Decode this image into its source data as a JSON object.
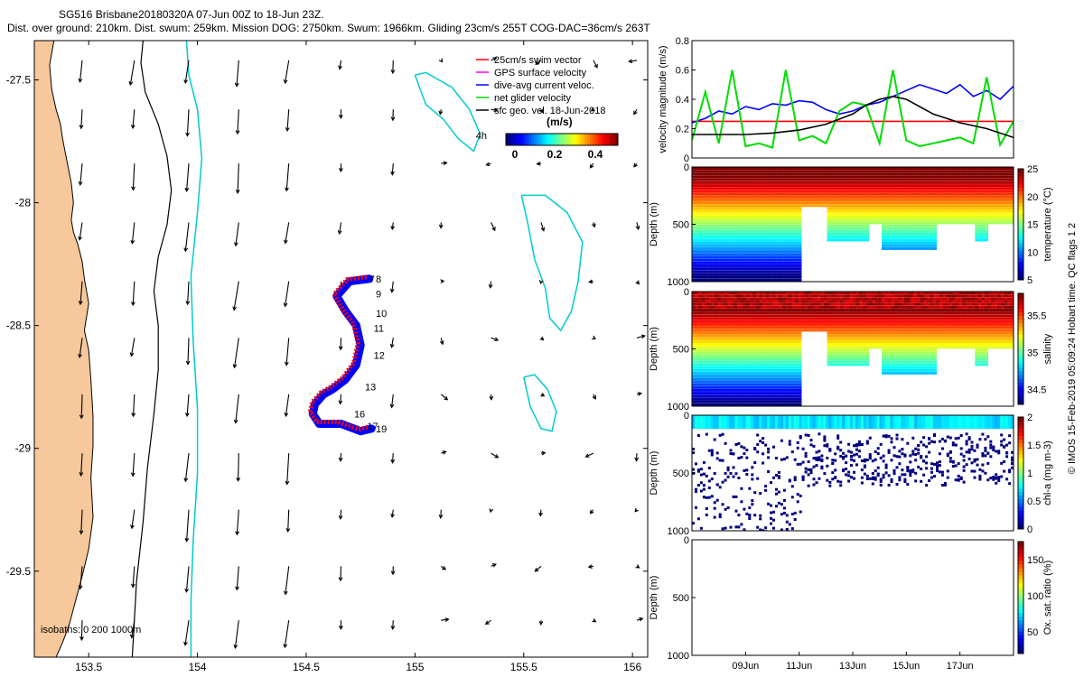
{
  "header": {
    "line1": "SG516 Brisbane20180320A 07-Jun 00Z to 18-Jun 23Z.",
    "line2": "Dist. over ground: 210km. Dist. swum: 259km. Mission DOG: 2750km. Swum: 1966km. Gliding 23cm/s 255T COG-DAC=36cm/s 263T"
  },
  "map": {
    "legend": [
      {
        "label": "25cm/s swim vector",
        "color": "#ff0000"
      },
      {
        "label": "GPS surface velocity",
        "color": "#ff00ff"
      },
      {
        "label": "dive-avg current veloc.",
        "color": "#0000ff"
      },
      {
        "label": "net glider velocity",
        "color": "#00dd00"
      },
      {
        "label": "sfc geo. vel. 18-Jun-2018",
        "color": "#000000"
      }
    ],
    "colorbar_label": "(m/s)",
    "colorbar_ticks": [
      "0",
      "0.2",
      "0.4"
    ],
    "eddy_label": "4h",
    "isobaths_label": "isobaths: 0   200  1000m",
    "dive_labels": [
      "8",
      "7",
      "9",
      "10",
      "11",
      "12",
      "13",
      "16",
      "17",
      "19"
    ],
    "colors": {
      "land": "#f7c89b",
      "isobath_200": "#00cccc",
      "track_red": "#ff0000",
      "track_blue": "#0000ff"
    }
  },
  "side_text": "© IMOS 15-Feb-2019 05:09:24 Hobart time. QC flags 1  2",
  "chart_data": [
    {
      "type": "map",
      "name": "glider track map",
      "xlim": [
        153.25,
        156.07
      ],
      "ylim": [
        -29.85,
        -27.34
      ],
      "x_ticks": [
        153.5,
        154,
        154.5,
        155,
        155.5,
        156
      ],
      "x_tick_labels": [
        "153.5",
        "154",
        "154.5",
        "155",
        "155.5",
        "156"
      ],
      "y_ticks": [
        -27.5,
        -28,
        -28.5,
        -29,
        -29.5
      ],
      "y_tick_labels": [
        "-27.5",
        "-28",
        "-28.5",
        "-29",
        "-29.5"
      ],
      "track": {
        "lon": [
          154.79,
          154.7,
          154.64,
          154.68,
          154.73,
          154.75,
          154.73,
          154.68,
          154.62,
          154.58,
          154.54,
          154.53,
          154.56,
          154.66,
          154.75,
          154.8
        ],
        "lat": [
          -28.31,
          -28.32,
          -28.38,
          -28.44,
          -28.5,
          -28.58,
          -28.66,
          -28.72,
          -28.76,
          -28.78,
          -28.82,
          -28.86,
          -28.9,
          -28.9,
          -28.93,
          -28.92
        ]
      },
      "dive_label_positions": {
        "lon": [
          154.82,
          154.79,
          154.82,
          154.82,
          154.81,
          154.81,
          154.77,
          154.72,
          154.78,
          154.82
        ],
        "lat": [
          -28.31,
          -28.31,
          -28.37,
          -28.45,
          -28.51,
          -28.62,
          -28.75,
          -28.86,
          -28.91,
          -28.92
        ]
      },
      "coastline": {
        "lon": [
          153.25,
          153.34,
          153.32,
          153.33,
          153.35,
          153.37,
          153.38,
          153.4,
          153.42,
          153.43,
          153.42,
          153.43,
          153.45,
          153.47,
          153.48,
          153.5,
          153.48,
          153.5,
          153.51,
          153.52,
          153.52,
          153.51,
          153.52,
          153.5,
          153.47,
          153.44,
          153.41,
          153.38,
          153.35,
          153.25
        ],
        "lat": [
          -27.34,
          -27.34,
          -27.44,
          -27.54,
          -27.62,
          -27.68,
          -27.74,
          -27.83,
          -27.92,
          -28.0,
          -28.07,
          -28.12,
          -28.17,
          -28.24,
          -28.31,
          -28.41,
          -28.52,
          -28.6,
          -28.72,
          -28.87,
          -28.99,
          -29.12,
          -29.28,
          -29.41,
          -29.52,
          -29.62,
          -29.72,
          -29.79,
          -29.85,
          -29.85
        ]
      },
      "isobath_1000m": {
        "lon": [
          153.75,
          153.74,
          153.76,
          153.82,
          153.86,
          153.88,
          153.86,
          153.82,
          153.8,
          153.82,
          153.82,
          153.8,
          153.77,
          153.75,
          153.72,
          153.7
        ],
        "lat": [
          -27.34,
          -27.43,
          -27.55,
          -27.68,
          -27.81,
          -27.95,
          -28.09,
          -28.22,
          -28.36,
          -28.5,
          -28.68,
          -28.86,
          -29.08,
          -29.3,
          -29.54,
          -29.85
        ]
      },
      "isobath_200m": {
        "lon": [
          153.95,
          153.96,
          154.0,
          154.02,
          154.0,
          153.97,
          153.98,
          154.0,
          154.0,
          153.98,
          153.97,
          153.97
        ],
        "lat": [
          -27.34,
          -27.48,
          -27.62,
          -27.82,
          -28.04,
          -28.3,
          -28.56,
          -28.84,
          -29.1,
          -29.38,
          -29.62,
          -29.85
        ]
      },
      "eddies": [
        {
          "lon": [
            155.0,
            155.05,
            155.17,
            155.25,
            155.3,
            155.27,
            155.2,
            155.13,
            155.05,
            155.0
          ],
          "lat": [
            -27.48,
            -27.47,
            -27.53,
            -27.62,
            -27.72,
            -27.79,
            -27.74,
            -27.66,
            -27.6,
            -27.48
          ]
        },
        {
          "lon": [
            155.49,
            155.6,
            155.7,
            155.77,
            155.75,
            155.72,
            155.67,
            155.62,
            155.6,
            155.55,
            155.52,
            155.49
          ],
          "lat": [
            -27.97,
            -27.97,
            -28.04,
            -28.16,
            -28.32,
            -28.44,
            -28.52,
            -28.47,
            -28.35,
            -28.23,
            -28.09,
            -27.97
          ]
        },
        {
          "lon": [
            155.5,
            155.55,
            155.61,
            155.65,
            155.63,
            155.58,
            155.53,
            155.5
          ],
          "lat": [
            -28.71,
            -28.7,
            -28.76,
            -28.85,
            -28.93,
            -28.92,
            -28.83,
            -28.71
          ]
        }
      ]
    },
    {
      "type": "line",
      "name": "velocity magnitude",
      "ylabel": "velocity magnitude (m/s)",
      "ylim": [
        0,
        0.8
      ],
      "y_ticks": [
        0,
        0.2,
        0.4,
        0.6,
        0.8
      ],
      "y_tick_labels": [
        "0",
        "0.2",
        "0.4",
        "0.6",
        "0.8"
      ],
      "x_range_days": [
        7,
        19
      ],
      "series": [
        {
          "color": "#ff0000",
          "x": [
            7.0,
            19.0
          ],
          "values": [
            0.25,
            0.25
          ]
        },
        {
          "color": "#0000ff",
          "x": [
            7.0,
            7.5,
            8.0,
            8.5,
            9.0,
            9.5,
            10.0,
            10.5,
            11.0,
            11.5,
            12.0,
            12.5,
            13.0,
            13.5,
            14.0,
            14.5,
            15.0,
            15.5,
            16.0,
            16.5,
            17.0,
            17.5,
            18.0,
            18.5,
            19.0
          ],
          "values": [
            0.24,
            0.27,
            0.32,
            0.3,
            0.35,
            0.33,
            0.37,
            0.36,
            0.39,
            0.38,
            0.33,
            0.3,
            0.32,
            0.36,
            0.38,
            0.42,
            0.46,
            0.5,
            0.47,
            0.44,
            0.5,
            0.42,
            0.46,
            0.4,
            0.49
          ]
        },
        {
          "color": "#00dd00",
          "x": [
            7.0,
            7.5,
            8.0,
            8.5,
            9.0,
            9.5,
            10.0,
            10.5,
            11.0,
            11.5,
            12.0,
            12.5,
            13.0,
            13.5,
            14.0,
            14.5,
            15.0,
            15.5,
            16.0,
            16.5,
            17.0,
            17.5,
            18.0,
            18.5,
            19.0
          ],
          "values": [
            0.12,
            0.45,
            0.1,
            0.6,
            0.08,
            0.1,
            0.07,
            0.6,
            0.12,
            0.15,
            0.1,
            0.32,
            0.38,
            0.36,
            0.1,
            0.6,
            0.12,
            0.08,
            0.1,
            0.12,
            0.14,
            0.1,
            0.55,
            0.09,
            0.25
          ]
        },
        {
          "color": "#000000",
          "x": [
            7.0,
            8.0,
            9.0,
            10.0,
            11.0,
            12.0,
            13.0,
            13.5,
            14.0,
            14.5,
            15.0,
            16.0,
            17.0,
            18.0,
            19.0
          ],
          "values": [
            0.16,
            0.16,
            0.16,
            0.17,
            0.19,
            0.23,
            0.3,
            0.36,
            0.4,
            0.42,
            0.4,
            0.3,
            0.24,
            0.2,
            0.14
          ]
        }
      ]
    },
    {
      "type": "heatmap",
      "name": "temperature section",
      "ylabel": "Depth (m)",
      "ylim": [
        1000,
        0
      ],
      "y_ticks": [
        0,
        500,
        1000
      ],
      "colorbar_label": "temperature (°C)",
      "clim": [
        5,
        25
      ],
      "colorbar_ticks": [
        5,
        10,
        15,
        20,
        25
      ]
    },
    {
      "type": "heatmap",
      "name": "salinity section",
      "ylabel": "Depth (m)",
      "ylim": [
        1000,
        0
      ],
      "y_ticks": [
        0,
        500,
        1000
      ],
      "colorbar_label": "salinity",
      "clim": [
        34.3,
        35.8
      ],
      "colorbar_ticks": [
        34.5,
        35,
        35.5
      ]
    },
    {
      "type": "heatmap",
      "name": "chlorophyll section",
      "ylabel": "Depth (m)",
      "ylim": [
        1000,
        0
      ],
      "y_ticks": [
        0,
        500,
        1000
      ],
      "colorbar_label": "chl-a (mg m-3)",
      "clim": [
        0,
        2
      ],
      "colorbar_ticks": [
        0,
        0.5,
        1,
        1.5,
        2
      ]
    },
    {
      "type": "heatmap",
      "name": "oxygen saturation section",
      "ylabel": "Depth (m)",
      "ylim": [
        1000,
        0
      ],
      "y_ticks": [
        0,
        500,
        1000
      ],
      "colorbar_label": "Ox. sat. ratio (%)",
      "clim": [
        20,
        175
      ],
      "colorbar_ticks": [
        50,
        100,
        150
      ],
      "x_ticks_days": [
        9,
        11,
        13,
        15,
        17
      ],
      "x_tick_labels": [
        "09Jun",
        "11Jun",
        "13Jun",
        "15Jun",
        "17Jun"
      ]
    }
  ]
}
